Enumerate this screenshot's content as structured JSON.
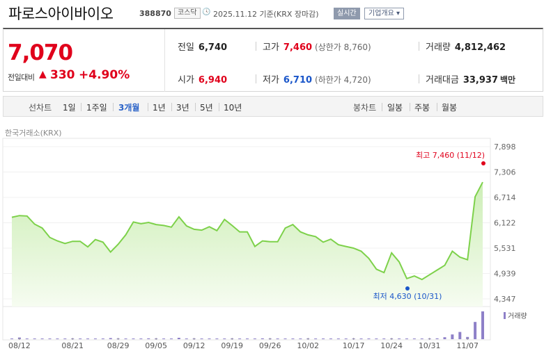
{
  "header": {
    "name": "파로스아이바이오",
    "code": "388870",
    "market": "코스닥",
    "date": "2025.11.12",
    "basis": "기준(KRX 장마감)",
    "realtime_label": "실시간",
    "company_info_label": "기업개요 ▾"
  },
  "quote": {
    "price": "7,070",
    "change_label": "전일대비",
    "change_arrow": "▲",
    "change": "330",
    "change_pct": "+4.90%",
    "prev_close": {
      "label": "전일",
      "value": "6,740"
    },
    "open": {
      "label": "시가",
      "value": "6,940"
    },
    "high": {
      "label": "고가",
      "value": "7,460",
      "limit": "(상한가 8,760)"
    },
    "low": {
      "label": "저가",
      "value": "6,710",
      "limit": "(하한가 4,720)"
    },
    "volume": {
      "label": "거래량",
      "value": "4,812,462"
    },
    "amount": {
      "label": "거래대금",
      "value": "33,937",
      "unit": "백만"
    }
  },
  "period_bar": {
    "line_label": "선차트",
    "line_options": [
      "1일",
      "1주일",
      "3개월",
      "1년",
      "3년",
      "5년",
      "10년"
    ],
    "selected": "3개월",
    "candle_label": "봉차트",
    "candle_options": [
      "일봉",
      "주봉",
      "월봉"
    ]
  },
  "source": "한국거래소(KRX)",
  "colors": {
    "up": "#e0001b",
    "down": "#1a56c9",
    "line": "#7dd14a",
    "fill": "#d9f3c6",
    "volume": "#8e80c8"
  },
  "chart_data": {
    "type": "area",
    "y_ticks": [
      "7,898",
      "7,306",
      "6,714",
      "6,122",
      "5,531",
      "4,939",
      "4,347"
    ],
    "ylim": [
      4347,
      7898
    ],
    "x_tick_labels": [
      "08/12",
      "08/21",
      "08/29",
      "09/05",
      "09/12",
      "09/19",
      "09/26",
      "10/02",
      "10/17",
      "10/24",
      "10/31",
      "11/07"
    ],
    "x_tick_index": [
      1,
      8,
      14,
      19,
      24,
      29,
      34,
      39,
      45,
      50,
      55,
      60
    ],
    "values": [
      6250,
      6290,
      6280,
      6090,
      6000,
      5780,
      5700,
      5640,
      5690,
      5690,
      5560,
      5730,
      5670,
      5440,
      5620,
      5840,
      6140,
      6100,
      6130,
      6080,
      6060,
      6020,
      6260,
      6050,
      5970,
      5950,
      6030,
      5940,
      6200,
      6060,
      5910,
      5910,
      5570,
      5700,
      5680,
      5680,
      6000,
      6080,
      5910,
      5840,
      5800,
      5670,
      5740,
      5610,
      5570,
      5530,
      5460,
      5290,
      5040,
      4960,
      5420,
      5210,
      4820,
      4880,
      4800,
      4910,
      5020,
      5130,
      5460,
      5320,
      5260,
      6730,
      7070
    ],
    "high_annotation": "최고  7,460 (11/12)",
    "low_annotation": "최저  4,630 (10/31)",
    "volume_label": "거래량",
    "volume": [
      0.02,
      0.06,
      0.01,
      0.01,
      0.01,
      0.01,
      0.01,
      0.01,
      0.01,
      0.01,
      0.02,
      0.01,
      0.01,
      0.04,
      0.01,
      0.01,
      0.01,
      0.01,
      0.03,
      0.02,
      0.01,
      0.01,
      0.05,
      0.01,
      0.01,
      0.01,
      0.01,
      0.01,
      0.01,
      0.01,
      0.01,
      0.01,
      0.01,
      0.03,
      0.02,
      0.01,
      0.01,
      0.01,
      0.02,
      0.01,
      0.01,
      0.01,
      0.01,
      0.01,
      0.01,
      0.01,
      0.01,
      0.01,
      0.02,
      0.01,
      0.01,
      0.01,
      0.02,
      0.02,
      0.01,
      0.02,
      0.03,
      0.07,
      0.17,
      0.26,
      0.08,
      0.62,
      1.0
    ]
  }
}
